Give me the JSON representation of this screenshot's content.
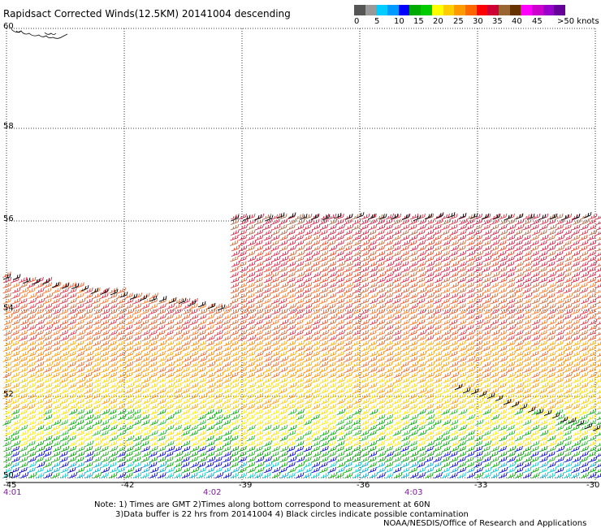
{
  "title": "Rapidsact Corrected Winds(12.5KM) 20141004 descending",
  "colorbar": {
    "colors": [
      "#555555",
      "#999999",
      "#00ccff",
      "#0099ff",
      "#0000ff",
      "#00aa00",
      "#00cc00",
      "#ffff00",
      "#ffcc00",
      "#ff9900",
      "#ff6600",
      "#ff0000",
      "#cc0033",
      "#996633",
      "#663300",
      "#ff00ff",
      "#cc00cc",
      "#9900cc",
      "#660099"
    ],
    "labels": [
      "0",
      "5",
      "10",
      "15",
      "20",
      "25",
      "30",
      "35",
      "40",
      "45",
      ">50 knots"
    ]
  },
  "lat_labels": [
    "60",
    "58",
    "56",
    "54",
    "52",
    "50"
  ],
  "lon_labels": [
    "-45",
    "-42",
    "-39",
    "-36",
    "-33",
    "-30"
  ],
  "time_labels": [
    "4:01",
    "4:02",
    "4:03"
  ],
  "notes": {
    "line1": "Note: 1) Times are GMT 2)Times along bottom correspond to measurement at 60N",
    "line2": "3)Data buffer is 22 hrs from 20141004 4) Black circles indicate possible contamination",
    "line3": "NOAA/NESDIS/Office of Research and Applications"
  }
}
